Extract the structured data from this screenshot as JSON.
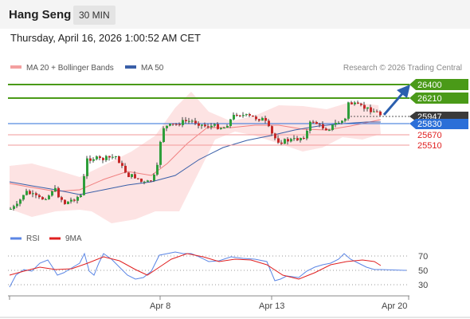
{
  "header": {
    "title": "Hang Seng",
    "timeframe": "30 MIN"
  },
  "datetime": "Thursday, April 16, 2026 1:00:52 AM CET",
  "legend": {
    "bollinger": {
      "label": "MA 20 + Bollinger Bands",
      "color": "#f08080"
    },
    "ma50": {
      "label": "MA 50",
      "color": "#3a5fa8"
    },
    "research": "Research © 2026 Trading Central"
  },
  "levels": {
    "resistance": [
      {
        "value": "26400",
        "color": "#4a9a18"
      },
      {
        "value": "26210",
        "color": "#4a9a18"
      }
    ],
    "last": {
      "value": "25947",
      "color": "#3a3a3a"
    },
    "pivot": {
      "value": "25830",
      "color": "#2b6fd8"
    },
    "support": [
      {
        "value": "25670",
        "color": "#e02020"
      },
      {
        "value": "25510",
        "color": "#e02020"
      }
    ]
  },
  "rsi_legend": {
    "rsi": {
      "label": "RSI",
      "color": "#5b86e5"
    },
    "ma": {
      "label": "9MA",
      "color": "#e02020"
    }
  },
  "rsi_levels": [
    "70",
    "50",
    "30"
  ],
  "x_axis": [
    "Apr 8",
    "Apr 13",
    "Apr 20"
  ]
}
